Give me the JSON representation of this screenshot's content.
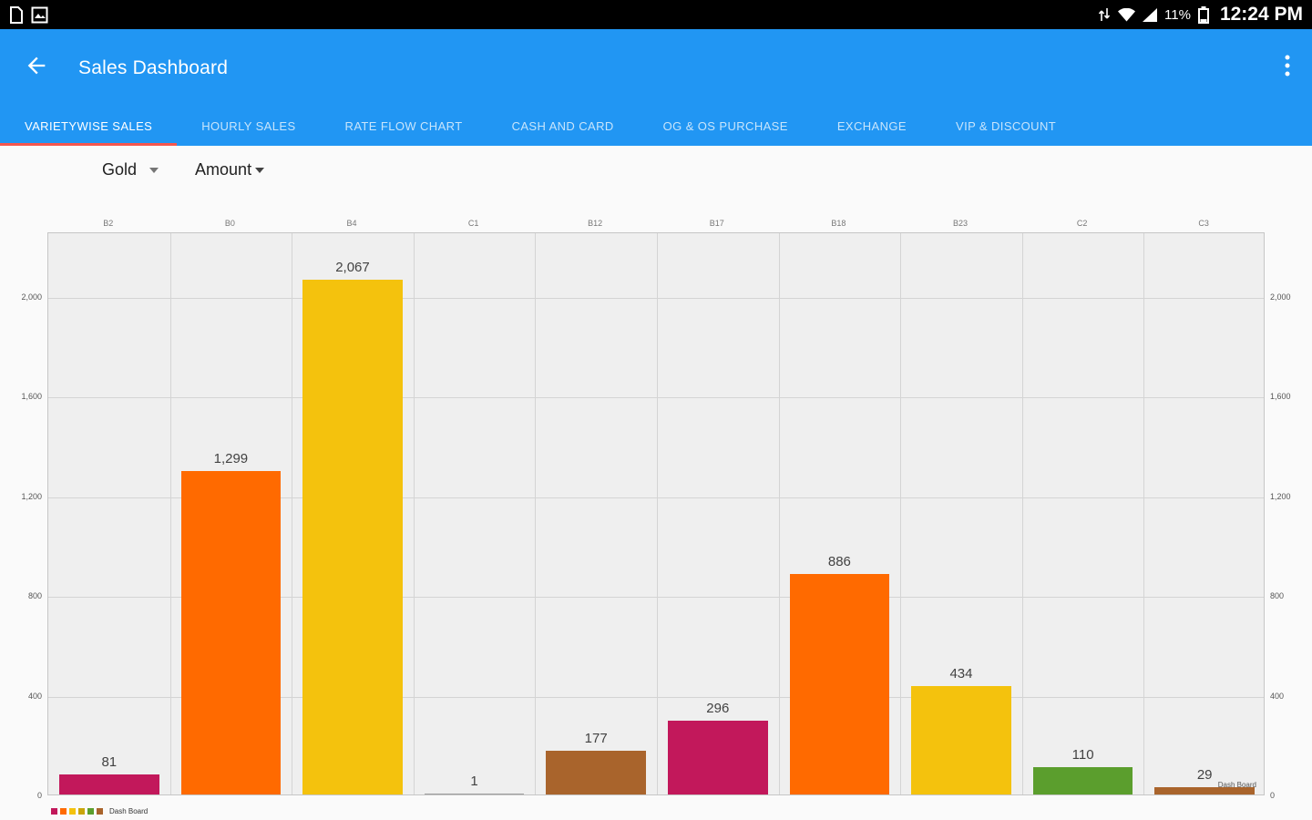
{
  "colors": {
    "app_bar": "#2196F3",
    "tab_indicator": "#F4564E",
    "status_bar": "#000000"
  },
  "status_bar": {
    "time": "12:24 PM",
    "battery": "11%",
    "left_icons": [
      "file-notification-icon",
      "gallery-notification-icon"
    ],
    "right_icons": [
      "data-transfer-icon",
      "wifi-icon",
      "signal-icon",
      "battery-icon"
    ]
  },
  "app_bar": {
    "title": "Sales Dashboard",
    "icons": [
      "back-arrow-icon",
      "overflow-menu-icon"
    ]
  },
  "tabs": [
    {
      "label": "VARIETYWISE SALES",
      "active": true
    },
    {
      "label": "HOURLY SALES",
      "active": false
    },
    {
      "label": "RATE FLOW CHART",
      "active": false
    },
    {
      "label": "CASH AND CARD",
      "active": false
    },
    {
      "label": "OG & OS PURCHASE",
      "active": false
    },
    {
      "label": "EXCHANGE",
      "active": false
    },
    {
      "label": "VIP & DISCOUNT",
      "active": false
    }
  ],
  "filters": {
    "metal": "Gold",
    "measure": "Amount"
  },
  "chart_data": {
    "type": "bar",
    "title": "",
    "xlabel": "",
    "ylabel": "",
    "categories": [
      "B2",
      "B0",
      "B4",
      "C1",
      "B12",
      "B17",
      "B18",
      "B23",
      "C2",
      "C3"
    ],
    "values": [
      81,
      1299,
      2067,
      1,
      177,
      296,
      886,
      434,
      110,
      29
    ],
    "value_labels": [
      "81",
      "1,299",
      "2,067",
      "1",
      "177",
      "296",
      "886",
      "434",
      "110",
      "29"
    ],
    "bar_colors": [
      "#C2185B",
      "#FF6A00",
      "#F4C20D",
      "#9E9E9E",
      "#A9642C",
      "#C2185B",
      "#FF6A00",
      "#F4C20D",
      "#5B9E2D",
      "#A9642C"
    ],
    "ylim": [
      0,
      2260
    ],
    "yticks": [
      2000,
      1600,
      1200,
      800,
      400,
      0
    ],
    "ytick_labels": [
      "2,000",
      "1,600",
      "1,200",
      "800",
      "400",
      "0"
    ],
    "grid": true,
    "legend": {
      "label": "Dash Board",
      "position": "bottom-left",
      "colors": [
        "#C2185B",
        "#FF6A00",
        "#F4C20D",
        "#C9A50A",
        "#5B9E2D",
        "#A9642C"
      ]
    },
    "watermark": "Dash Board"
  }
}
